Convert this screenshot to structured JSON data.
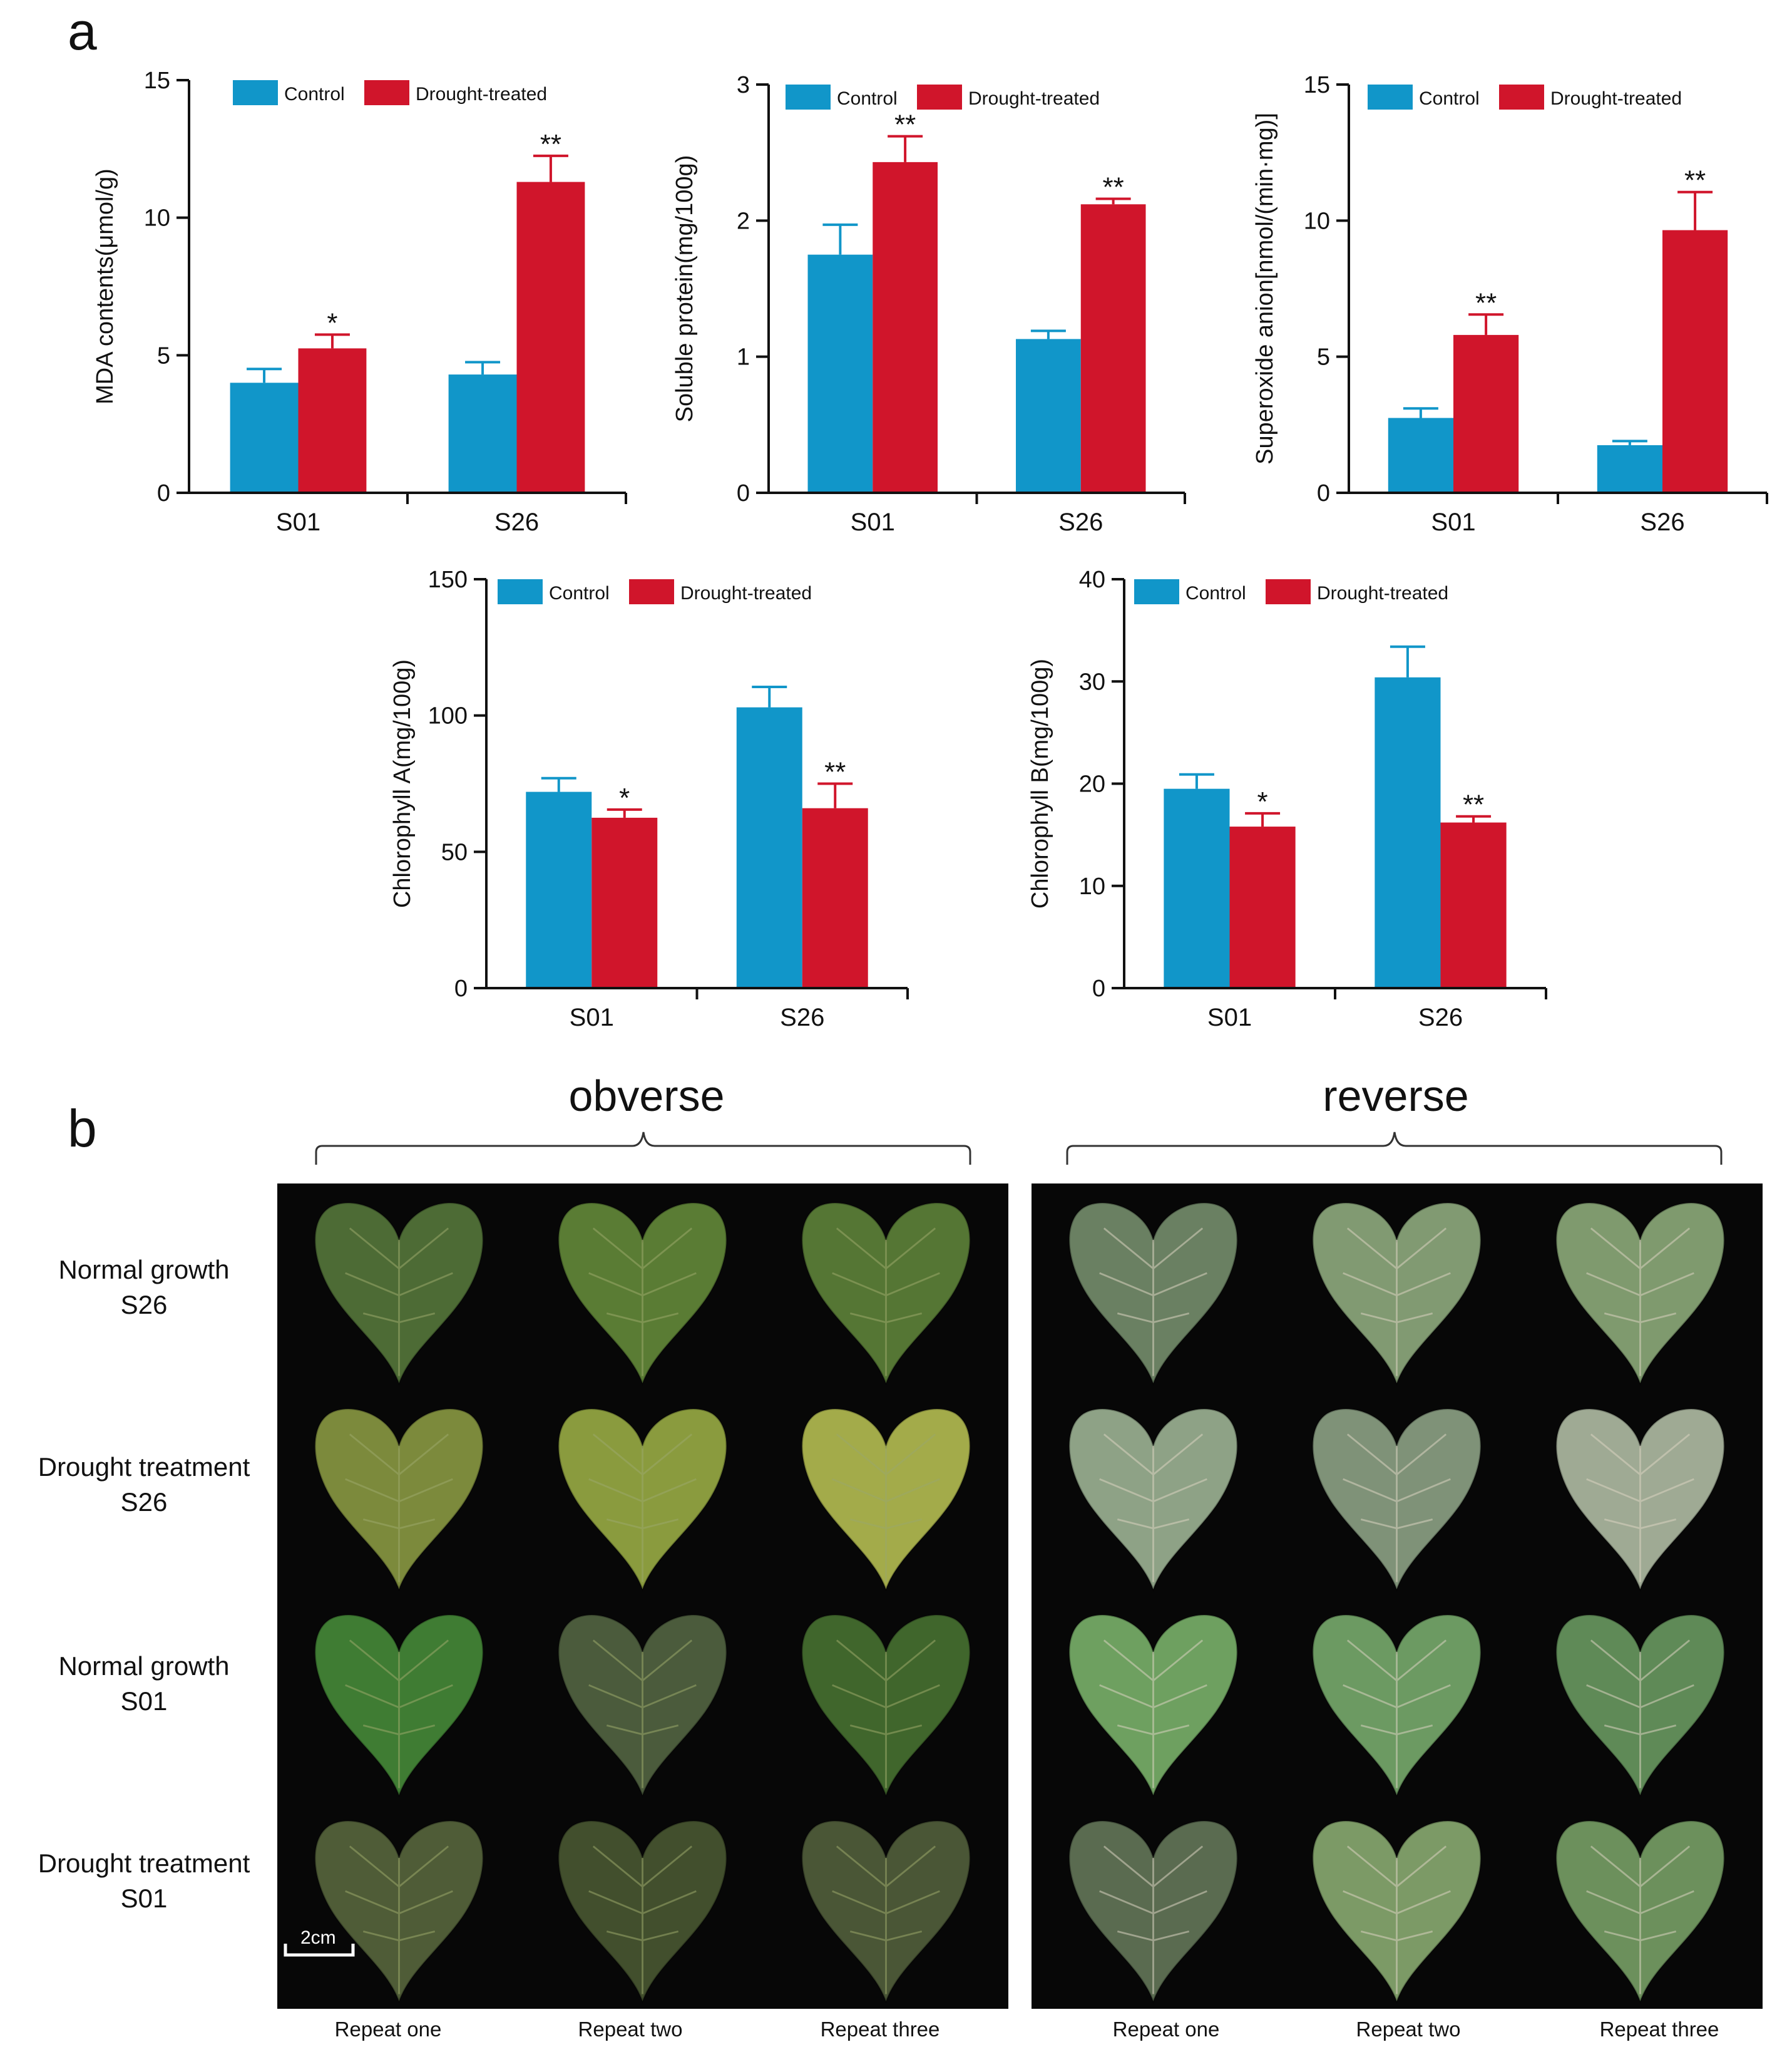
{
  "figure": {
    "panel_a_label": "a",
    "panel_b_label": "b",
    "colors": {
      "control": "#1196c9",
      "drought": "#d0152b",
      "axis": "#111111"
    }
  },
  "chart_data": [
    {
      "type": "bar",
      "ylabel": "MDA contents(μmol/g)",
      "categories": [
        "S01",
        "S26"
      ],
      "legend": [
        "Control",
        "Drought-treated"
      ],
      "legend_position": "top",
      "ylim": [
        0,
        15
      ],
      "yticks": [
        0,
        5,
        10,
        15
      ],
      "series": [
        {
          "name": "Control",
          "values": [
            4.0,
            4.3
          ],
          "errors": [
            0.5,
            0.45
          ],
          "stars": [
            "",
            ""
          ]
        },
        {
          "name": "Drought-treated",
          "values": [
            5.25,
            11.3
          ],
          "errors": [
            0.5,
            0.95
          ],
          "stars": [
            "*",
            "**"
          ]
        }
      ]
    },
    {
      "type": "bar",
      "ylabel": "Soluble protein(mg/100g)",
      "categories": [
        "S01",
        "S26"
      ],
      "legend": [
        "Control",
        "Drought-treated"
      ],
      "legend_position": "top",
      "ylim": [
        0,
        3
      ],
      "yticks": [
        0,
        1,
        2,
        3
      ],
      "series": [
        {
          "name": "Control",
          "values": [
            1.75,
            1.13
          ],
          "errors": [
            0.22,
            0.06
          ],
          "stars": [
            "",
            ""
          ]
        },
        {
          "name": "Drought-treated",
          "values": [
            2.43,
            2.12
          ],
          "errors": [
            0.19,
            0.04
          ],
          "stars": [
            "**",
            "**"
          ]
        }
      ]
    },
    {
      "type": "bar",
      "ylabel": "Superoxide anion[nmol/(min·mg)]",
      "categories": [
        "S01",
        "S26"
      ],
      "legend": [
        "Control",
        "Drought-treated"
      ],
      "legend_position": "top",
      "ylim": [
        0,
        15
      ],
      "yticks": [
        0,
        5,
        10,
        15
      ],
      "series": [
        {
          "name": "Control",
          "values": [
            2.75,
            1.75
          ],
          "errors": [
            0.35,
            0.15
          ],
          "stars": [
            "",
            ""
          ]
        },
        {
          "name": "Drought-treated",
          "values": [
            5.8,
            9.65
          ],
          "errors": [
            0.75,
            1.4
          ],
          "stars": [
            "**",
            "**"
          ]
        }
      ]
    },
    {
      "type": "bar",
      "ylabel": "Chlorophyll A(mg/100g)",
      "categories": [
        "S01",
        "S26"
      ],
      "legend": [
        "Control",
        "Drought-treated"
      ],
      "legend_position": "top",
      "ylim": [
        0,
        150
      ],
      "yticks": [
        0,
        50,
        100,
        150
      ],
      "series": [
        {
          "name": "Control",
          "values": [
            72,
            103
          ],
          "errors": [
            5,
            7.5
          ],
          "stars": [
            "",
            ""
          ]
        },
        {
          "name": "Drought-treated",
          "values": [
            62.5,
            66
          ],
          "errors": [
            3,
            9
          ],
          "stars": [
            "*",
            "**"
          ]
        }
      ]
    },
    {
      "type": "bar",
      "ylabel": "Chlorophyll B(mg/100g)",
      "categories": [
        "S01",
        "S26"
      ],
      "legend": [
        "Control",
        "Drought-treated"
      ],
      "legend_position": "top",
      "ylim": [
        0,
        40
      ],
      "yticks": [
        0,
        10,
        20,
        30,
        40
      ],
      "series": [
        {
          "name": "Control",
          "values": [
            19.5,
            30.4
          ],
          "errors": [
            1.4,
            3.0
          ],
          "stars": [
            "",
            ""
          ]
        },
        {
          "name": "Drought-treated",
          "values": [
            15.8,
            16.2
          ],
          "errors": [
            1.3,
            0.6
          ],
          "stars": [
            "*",
            "**"
          ]
        }
      ]
    }
  ],
  "photos": {
    "obverse_title": "obverse",
    "reverse_title": "reverse",
    "scale_label": "2cm",
    "rows": [
      {
        "line1": "Normal growth",
        "line2": "S26"
      },
      {
        "line1": "Drought treatment",
        "line2": "S26"
      },
      {
        "line1": "Normal growth",
        "line2": "S01"
      },
      {
        "line1": "Drought treatment",
        "line2": "S01"
      }
    ],
    "columns": [
      "Repeat one",
      "Repeat two",
      "Repeat three",
      "Repeat one",
      "Repeat two",
      "Repeat three"
    ],
    "leaf_colors": {
      "obverse": [
        [
          "#4d6b35",
          "#5a7c34",
          "#557634"
        ],
        [
          "#7c8a3c",
          "#8a9b3e",
          "#a3ab4a"
        ],
        [
          "#3f7c33",
          "#4b5b3c",
          "#40662c"
        ],
        [
          "#4f5c37",
          "#424f2d",
          "#4a5636"
        ]
      ],
      "reverse": [
        [
          "#6a8062",
          "#819a72",
          "#7f9a6e"
        ],
        [
          "#8ea286",
          "#7f9278",
          "#9faa94"
        ],
        [
          "#6ea060",
          "#6c9a62",
          "#5f8a57"
        ],
        [
          "#5a6b50",
          "#7c9a66",
          "#6c905c"
        ]
      ]
    }
  }
}
